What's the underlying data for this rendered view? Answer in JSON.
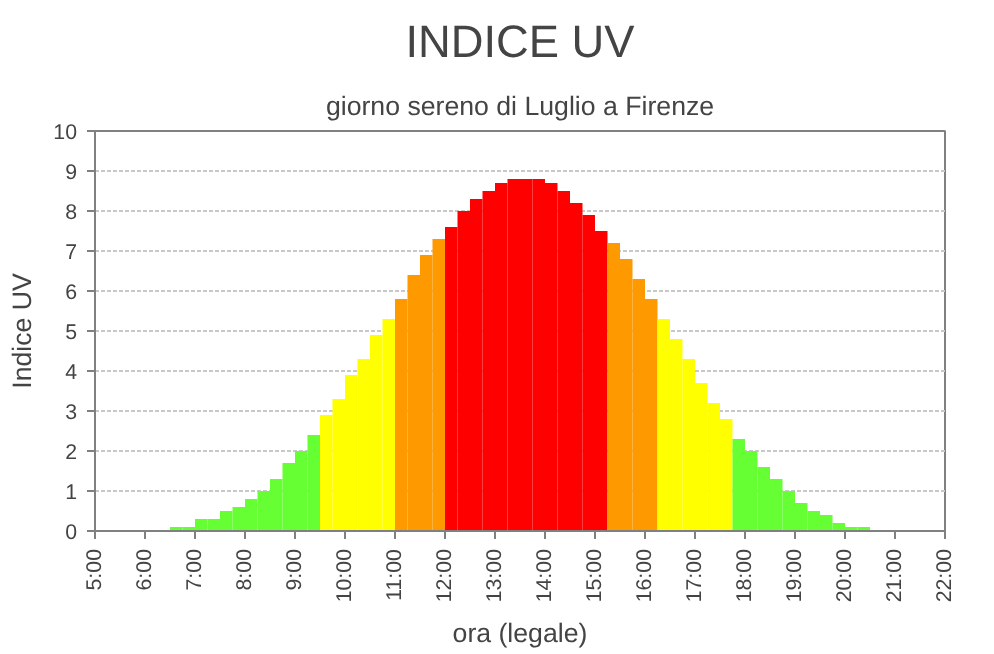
{
  "chart_data": {
    "type": "histogram",
    "title": "INDICE UV",
    "subtitle": "giorno sereno di Luglio a Firenze",
    "xlabel": "ora (legale)",
    "ylabel": "Indice UV",
    "bins": [
      6.5,
      6.75,
      7,
      7.25,
      7.5,
      7.75,
      8,
      8.25,
      8.5,
      8.75,
      9,
      9.25,
      9.5,
      9.75,
      10,
      10.25,
      10.5,
      10.75,
      11,
      11.25,
      11.5,
      11.75,
      12,
      12.25,
      12.5,
      12.75,
      13,
      13.25,
      13.5,
      13.75,
      14,
      14.25,
      14.5,
      14.75,
      15,
      15.25,
      15.5,
      15.75,
      16,
      16.25,
      16.5,
      16.75,
      17,
      17.25,
      17.5,
      17.75,
      18,
      18.25,
      18.5,
      18.75,
      19,
      19.25,
      19.5,
      19.75,
      20,
      20.25,
      20.5
    ],
    "values": [
      0.1,
      0.1,
      0.3,
      0.3,
      0.5,
      0.6,
      0.8,
      1.0,
      1.3,
      1.7,
      2.0,
      2.4,
      2.9,
      3.3,
      3.9,
      4.3,
      4.9,
      5.3,
      5.8,
      6.4,
      6.9,
      7.3,
      7.6,
      8.0,
      8.3,
      8.5,
      8.7,
      8.8,
      8.8,
      8.8,
      8.7,
      8.5,
      8.2,
      7.9,
      7.5,
      7.2,
      6.8,
      6.3,
      5.8,
      5.3,
      4.8,
      4.3,
      3.7,
      3.2,
      2.8,
      2.3,
      2.0,
      1.6,
      1.3,
      1.0,
      0.7,
      0.5,
      0.4,
      0.2,
      0.1,
      0.1
    ],
    "colors": [
      "#66ff33",
      "#66ff33",
      "#66ff33",
      "#66ff33",
      "#66ff33",
      "#66ff33",
      "#66ff33",
      "#66ff33",
      "#66ff33",
      "#66ff33",
      "#66ff33",
      "#66ff33",
      "#ffff00",
      "#ffff00",
      "#ffff00",
      "#ffff00",
      "#ffff00",
      "#ffff00",
      "#ff9900",
      "#ff9900",
      "#ff9900",
      "#ff9900",
      "#ff0000",
      "#ff0000",
      "#ff0000",
      "#ff0000",
      "#ff0000",
      "#ff0000",
      "#ff0000",
      "#ff0000",
      "#ff0000",
      "#ff0000",
      "#ff0000",
      "#ff0000",
      "#ff0000",
      "#ff9900",
      "#ff9900",
      "#ff9900",
      "#ff9900",
      "#ffff00",
      "#ffff00",
      "#ffff00",
      "#ffff00",
      "#ffff00",
      "#ffff00",
      "#66ff33",
      "#66ff33",
      "#66ff33",
      "#66ff33",
      "#66ff33",
      "#66ff33",
      "#66ff33",
      "#66ff33",
      "#66ff33",
      "#66ff33",
      "#66ff33"
    ],
    "xlim": [
      5,
      22
    ],
    "ylim": [
      0,
      10
    ],
    "xticks": [
      {
        "value": 5,
        "label": "5:00"
      },
      {
        "value": 6,
        "label": "6:00"
      },
      {
        "value": 7,
        "label": "7:00"
      },
      {
        "value": 8,
        "label": "8:00"
      },
      {
        "value": 9,
        "label": "9:00"
      },
      {
        "value": 10,
        "label": "10:00"
      },
      {
        "value": 11,
        "label": "11:00"
      },
      {
        "value": 12,
        "label": "12:00"
      },
      {
        "value": 13,
        "label": "13:00"
      },
      {
        "value": 14,
        "label": "14:00"
      },
      {
        "value": 15,
        "label": "15:00"
      },
      {
        "value": 16,
        "label": "16:00"
      },
      {
        "value": 17,
        "label": "17:00"
      },
      {
        "value": 18,
        "label": "18:00"
      },
      {
        "value": 19,
        "label": "19:00"
      },
      {
        "value": 20,
        "label": "20:00"
      },
      {
        "value": 21,
        "label": "21:00"
      },
      {
        "value": 22,
        "label": "22:00"
      }
    ],
    "yticks": [
      0,
      1,
      2,
      3,
      4,
      5,
      6,
      7,
      8,
      9,
      10
    ],
    "grid": "y"
  }
}
